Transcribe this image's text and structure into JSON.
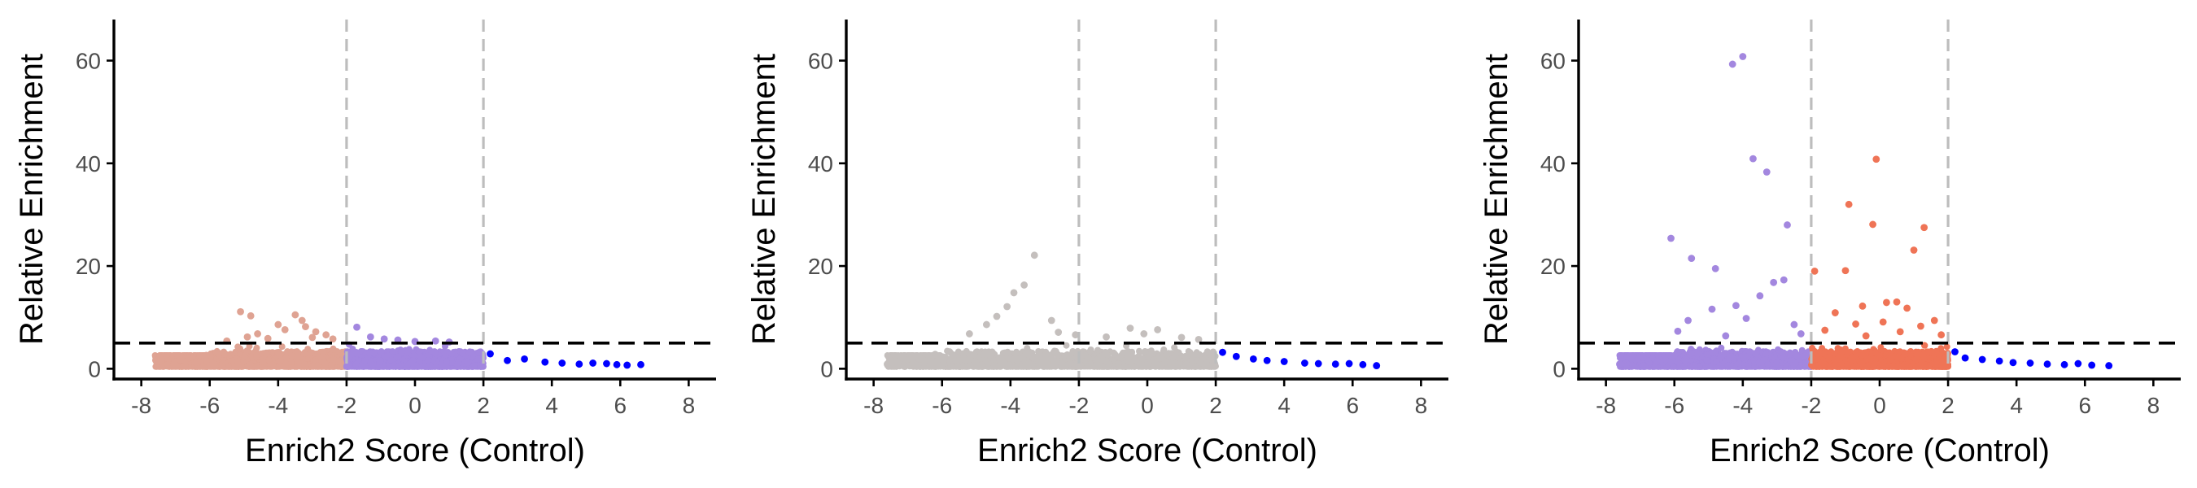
{
  "chart_data": [
    {
      "type": "scatter",
      "title": "",
      "xlabel": "Enrich2 Score (Control)",
      "ylabel": "Relative Enrichment",
      "xlim": [
        -8.8,
        8.8
      ],
      "ylim": [
        -2,
        68
      ],
      "xticks": [
        -8,
        -6,
        -4,
        -2,
        0,
        2,
        4,
        6,
        8
      ],
      "yticks": [
        0,
        20,
        40,
        60
      ],
      "grid": false,
      "legend": "none",
      "vlines": [
        -2,
        2
      ],
      "hline": 5,
      "series": [
        {
          "color": "#dfa393",
          "x_range": [
            -7.6,
            -2
          ],
          "dense": true,
          "points": [
            [
              -7.5,
              1.4
            ],
            [
              -6.1,
              2.6
            ],
            [
              -5.1,
              11.1
            ],
            [
              -4.8,
              10.3
            ],
            [
              -4.9,
              6.2
            ],
            [
              -4.6,
              6.8
            ],
            [
              -4.3,
              5.9
            ],
            [
              -4.0,
              8.6
            ],
            [
              -3.8,
              7.6
            ],
            [
              -3.5,
              10.5
            ],
            [
              -3.3,
              9.4
            ],
            [
              -3.2,
              8.2
            ],
            [
              -2.9,
              7.2
            ],
            [
              -2.6,
              6.6
            ],
            [
              -2.4,
              5.8
            ],
            [
              -5.5,
              5.4
            ],
            [
              -3.0,
              6.1
            ]
          ]
        },
        {
          "color": "#a387df",
          "x_range": [
            -2,
            2
          ],
          "dense": true,
          "points": [
            [
              -1.7,
              8.1
            ],
            [
              -1.3,
              6.2
            ],
            [
              -0.9,
              5.8
            ],
            [
              -0.5,
              5.6
            ],
            [
              0.0,
              5.3
            ],
            [
              0.6,
              5.4
            ],
            [
              1.0,
              5.2
            ]
          ]
        },
        {
          "color": "#0000ff",
          "x_range": [
            2,
            6.7
          ],
          "dense": false,
          "points": [
            [
              2.2,
              2.9
            ],
            [
              2.7,
              1.6
            ],
            [
              3.2,
              1.9
            ],
            [
              3.8,
              1.3
            ],
            [
              4.3,
              1.1
            ],
            [
              4.8,
              0.9
            ],
            [
              5.2,
              1.1
            ],
            [
              5.6,
              1.0
            ],
            [
              5.9,
              0.8
            ],
            [
              6.2,
              0.7
            ],
            [
              6.6,
              0.8
            ]
          ]
        }
      ]
    },
    {
      "type": "scatter",
      "title": "",
      "xlabel": "Enrich2 Score (Control)",
      "ylabel": "Relative Enrichment",
      "xlim": [
        -8.8,
        8.8
      ],
      "ylim": [
        -2,
        68
      ],
      "xticks": [
        -8,
        -6,
        -4,
        -2,
        0,
        2,
        4,
        6,
        8
      ],
      "yticks": [
        0,
        20,
        40,
        60
      ],
      "grid": false,
      "legend": "none",
      "vlines": [
        -2,
        2
      ],
      "hline": 5,
      "series": [
        {
          "color": "#c4bfbd",
          "x_range": [
            -7.6,
            2
          ],
          "dense": true,
          "points": [
            [
              -7.6,
              0.9
            ],
            [
              -6.2,
              2.8
            ],
            [
              -3.3,
              22.1
            ],
            [
              -3.6,
              16.3
            ],
            [
              -3.9,
              14.8
            ],
            [
              -4.1,
              12.1
            ],
            [
              -4.4,
              10.2
            ],
            [
              -4.7,
              8.6
            ],
            [
              -5.2,
              6.8
            ],
            [
              -2.8,
              9.4
            ],
            [
              -2.6,
              7.1
            ],
            [
              -2.1,
              6.6
            ],
            [
              -1.2,
              6.2
            ],
            [
              -0.5,
              7.9
            ],
            [
              0.3,
              7.6
            ],
            [
              -0.1,
              6.8
            ],
            [
              1.0,
              6.1
            ],
            [
              1.5,
              5.7
            ]
          ]
        },
        {
          "color": "#0000ff",
          "x_range": [
            2,
            6.7
          ],
          "dense": false,
          "points": [
            [
              2.2,
              3.2
            ],
            [
              2.6,
              2.4
            ],
            [
              3.1,
              1.9
            ],
            [
              3.5,
              1.6
            ],
            [
              4.0,
              1.4
            ],
            [
              4.6,
              1.1
            ],
            [
              5.0,
              1.0
            ],
            [
              5.5,
              0.9
            ],
            [
              5.9,
              1.0
            ],
            [
              6.3,
              0.8
            ],
            [
              6.7,
              0.6
            ]
          ]
        }
      ]
    },
    {
      "type": "scatter",
      "title": "",
      "xlabel": "Enrich2 Score (Control)",
      "ylabel": "Relative Enrichment",
      "xlim": [
        -8.8,
        8.8
      ],
      "ylim": [
        -2,
        68
      ],
      "xticks": [
        -8,
        -6,
        -4,
        -2,
        0,
        2,
        4,
        6,
        8
      ],
      "yticks": [
        0,
        20,
        40,
        60
      ],
      "grid": false,
      "legend": "none",
      "vlines": [
        -2,
        2
      ],
      "hline": 5,
      "series": [
        {
          "color": "#a387df",
          "x_range": [
            -7.6,
            -2
          ],
          "dense": true,
          "points": [
            [
              -7.6,
              0.9
            ],
            [
              -6.1,
              25.4
            ],
            [
              -4.0,
              60.8
            ],
            [
              -4.3,
              59.3
            ],
            [
              -3.7,
              40.9
            ],
            [
              -3.3,
              38.3
            ],
            [
              -2.7,
              28.0
            ],
            [
              -5.5,
              21.5
            ],
            [
              -4.8,
              19.5
            ],
            [
              -3.1,
              16.8
            ],
            [
              -2.8,
              17.3
            ],
            [
              -3.5,
              14.2
            ],
            [
              -4.2,
              12.3
            ],
            [
              -4.9,
              11.6
            ],
            [
              -5.6,
              9.4
            ],
            [
              -3.9,
              9.8
            ],
            [
              -2.5,
              8.6
            ],
            [
              -2.3,
              6.8
            ],
            [
              -5.9,
              7.3
            ],
            [
              -4.5,
              6.4
            ]
          ]
        },
        {
          "color": "#ef7456",
          "x_range": [
            -2,
            2
          ],
          "dense": true,
          "points": [
            [
              -0.1,
              40.8
            ],
            [
              -0.9,
              32.0
            ],
            [
              -0.2,
              28.1
            ],
            [
              1.3,
              27.5
            ],
            [
              -1.9,
              19.0
            ],
            [
              -1.0,
              19.1
            ],
            [
              1.0,
              23.1
            ],
            [
              0.5,
              13.0
            ],
            [
              -0.5,
              12.2
            ],
            [
              -1.3,
              10.9
            ],
            [
              0.2,
              12.9
            ],
            [
              0.8,
              11.8
            ],
            [
              1.6,
              9.4
            ],
            [
              -0.7,
              8.7
            ],
            [
              0.1,
              9.1
            ],
            [
              1.2,
              8.3
            ],
            [
              -1.6,
              7.5
            ],
            [
              0.6,
              7.2
            ],
            [
              1.8,
              6.6
            ],
            [
              -0.4,
              6.4
            ]
          ]
        },
        {
          "color": "#0000ff",
          "x_range": [
            2,
            6.7
          ],
          "dense": false,
          "points": [
            [
              2.2,
              3.3
            ],
            [
              2.5,
              2.1
            ],
            [
              3.0,
              1.8
            ],
            [
              3.5,
              1.5
            ],
            [
              3.9,
              1.2
            ],
            [
              4.4,
              1.1
            ],
            [
              4.9,
              0.9
            ],
            [
              5.4,
              0.8
            ],
            [
              5.8,
              1.0
            ],
            [
              6.2,
              0.7
            ],
            [
              6.7,
              0.6
            ]
          ]
        }
      ]
    }
  ]
}
